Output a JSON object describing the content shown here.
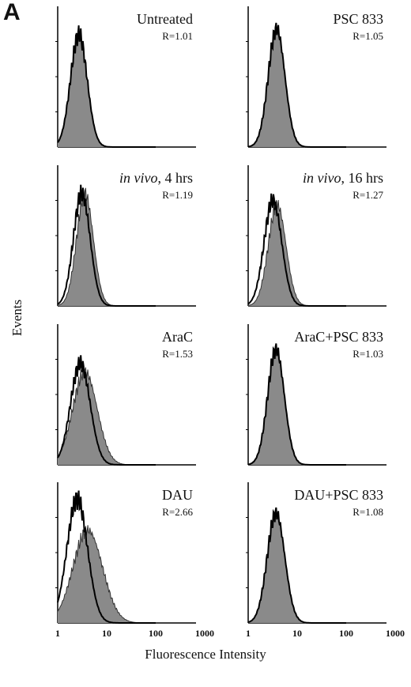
{
  "panel_letter": "A",
  "chart_data": {
    "type": "area",
    "ylabel": "Events",
    "xlabel": "Fluorescence Intensity",
    "x_scale": "log",
    "xlim": [
      1,
      1000
    ],
    "x_ticks": [
      "1",
      "10",
      "100",
      "1000"
    ],
    "colors": {
      "filled": "#8a8a8a",
      "outline": "#000000",
      "open": "#ffffff"
    },
    "panels": [
      {
        "title": "Untreated",
        "title_italic": "",
        "r": "R=1.01",
        "open": {
          "peak": 2.7,
          "sigma": 0.17,
          "height": 0.8
        },
        "filled": {
          "peak": 2.7,
          "sigma": 0.17,
          "height": 0.8
        }
      },
      {
        "title": "PSC 833",
        "title_italic": "",
        "r": "R=1.05",
        "open": {
          "peak": 3.8,
          "sigma": 0.17,
          "height": 0.84
        },
        "filled": {
          "peak": 3.8,
          "sigma": 0.17,
          "height": 0.84
        }
      },
      {
        "title": ", 4 hrs",
        "title_italic": "in vivo",
        "r": "R=1.19",
        "open": {
          "peak": 3.1,
          "sigma": 0.17,
          "height": 0.8
        },
        "filled": {
          "peak": 3.6,
          "sigma": 0.17,
          "height": 0.8
        }
      },
      {
        "title": ", 16 hrs",
        "title_italic": "in vivo",
        "r": "R=1.27",
        "open": {
          "peak": 3.2,
          "sigma": 0.18,
          "height": 0.75
        },
        "filled": {
          "peak": 3.9,
          "sigma": 0.18,
          "height": 0.72
        }
      },
      {
        "title": "AraC",
        "title_italic": "",
        "r": "R=1.53",
        "open": {
          "peak": 2.9,
          "sigma": 0.2,
          "height": 0.72
        },
        "filled": {
          "peak": 3.6,
          "sigma": 0.25,
          "height": 0.66
        }
      },
      {
        "title": "AraC+PSC 833",
        "title_italic": "",
        "r": "R=1.03",
        "open": {
          "peak": 3.7,
          "sigma": 0.17,
          "height": 0.82
        },
        "filled": {
          "peak": 3.7,
          "sigma": 0.17,
          "height": 0.82
        }
      },
      {
        "title": "DAU",
        "title_italic": "",
        "r": "R=2.66",
        "open": {
          "peak": 2.5,
          "sigma": 0.21,
          "height": 0.88
        },
        "filled": {
          "peak": 4.1,
          "sigma": 0.3,
          "height": 0.66
        }
      },
      {
        "title": "DAU+PSC 833",
        "title_italic": "",
        "r": "R=1.08",
        "open": {
          "peak": 3.7,
          "sigma": 0.18,
          "height": 0.78
        },
        "filled": {
          "peak": 3.7,
          "sigma": 0.18,
          "height": 0.78
        }
      }
    ]
  }
}
